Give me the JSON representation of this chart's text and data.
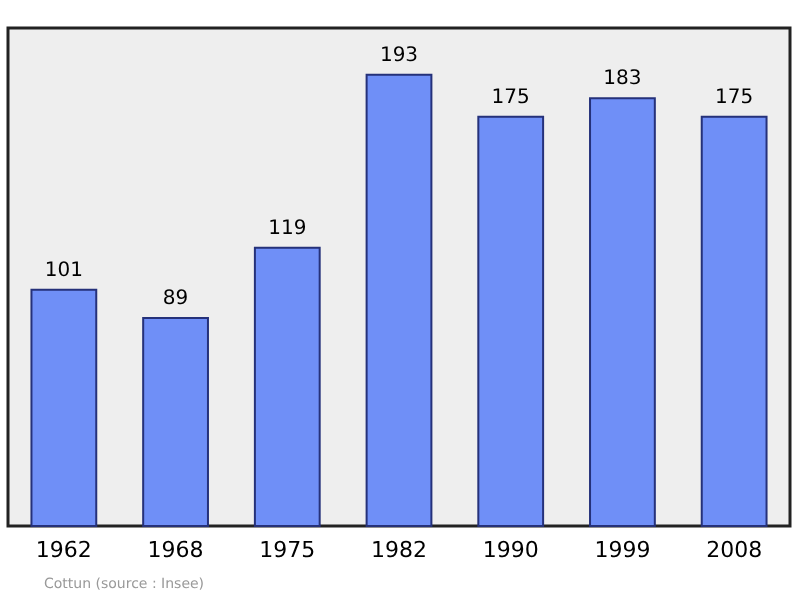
{
  "chart_data": {
    "type": "bar",
    "categories": [
      "1962",
      "1968",
      "1975",
      "1982",
      "1990",
      "1999",
      "2008"
    ],
    "values": [
      101,
      89,
      119,
      193,
      175,
      183,
      175
    ],
    "color": "#6f8ff7",
    "data_labels": true,
    "ylim": [
      0,
      213
    ],
    "tick_labels": "x",
    "grid": false,
    "annotations": [
      "Cottun    (source : Insee)"
    ]
  }
}
